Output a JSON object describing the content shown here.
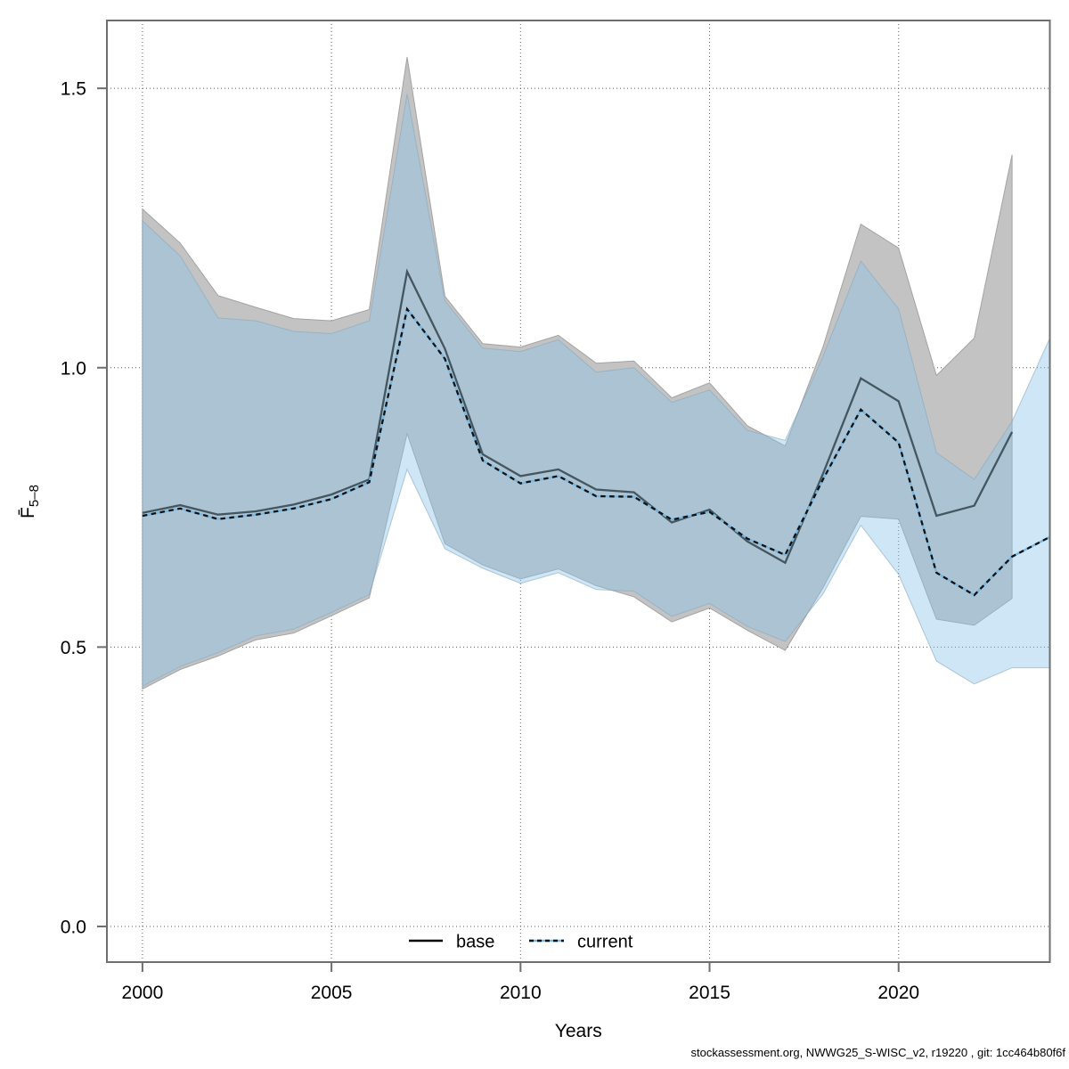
{
  "chart_data": {
    "type": "line",
    "title": "",
    "xlabel": "Years",
    "ylabel": {
      "main": "F̄",
      "sub": "5–8"
    },
    "footer": "stockassessment.org, NWWG25_S-WISC_v2, r19220 , git: 1cc464b80f6f",
    "xlim": [
      1999.06,
      2024.0
    ],
    "ylim": [
      -0.0638,
      1.6214
    ],
    "grid": "dotted",
    "legend_position": "bottom-center-inside",
    "x_ticks": [
      2000,
      2005,
      2010,
      2015,
      2020
    ],
    "x_tick_labels": [
      "2000",
      "2005",
      "2010",
      "2015",
      "2020"
    ],
    "y_ticks": [
      0.0,
      0.5,
      1.0,
      1.5
    ],
    "y_tick_labels": [
      "0.0",
      "0.5",
      "1.0",
      "1.5"
    ],
    "legend": [
      {
        "label": "base",
        "style": "solid"
      },
      {
        "label": "current",
        "style": "dotted"
      }
    ],
    "series": [
      {
        "name": "base",
        "line_style": "solid",
        "years": [
          2000,
          2001,
          2002,
          2003,
          2004,
          2005,
          2006,
          2007,
          2008,
          2009,
          2010,
          2011,
          2012,
          2013,
          2014,
          2015,
          2016,
          2017,
          2018,
          2019,
          2020,
          2021,
          2022,
          2023
        ],
        "median": [
          0.74,
          0.754,
          0.737,
          0.743,
          0.755,
          0.773,
          0.8,
          1.172,
          1.034,
          0.845,
          0.806,
          0.818,
          0.782,
          0.777,
          0.723,
          0.746,
          0.689,
          0.651,
          0.81,
          0.981,
          0.94,
          0.735,
          0.753,
          0.885
        ],
        "lower": [
          0.425,
          0.46,
          0.484,
          0.513,
          0.525,
          0.556,
          0.588,
          0.882,
          0.685,
          0.647,
          0.622,
          0.64,
          0.61,
          0.59,
          0.545,
          0.57,
          0.53,
          0.494,
          0.606,
          0.734,
          0.729,
          0.55,
          0.539,
          0.587
        ],
        "upper": [
          1.284,
          1.223,
          1.129,
          1.108,
          1.088,
          1.084,
          1.104,
          1.556,
          1.128,
          1.043,
          1.037,
          1.058,
          1.008,
          1.012,
          0.946,
          0.973,
          0.896,
          0.86,
          1.037,
          1.257,
          1.214,
          0.986,
          1.053,
          1.381
        ]
      },
      {
        "name": "current",
        "line_style": "dotted",
        "years": [
          2000,
          2001,
          2002,
          2003,
          2004,
          2005,
          2006,
          2007,
          2008,
          2009,
          2010,
          2011,
          2012,
          2013,
          2014,
          2015,
          2016,
          2017,
          2018,
          2019,
          2020,
          2021,
          2022,
          2023,
          2024
        ],
        "median": [
          0.735,
          0.748,
          0.729,
          0.737,
          0.748,
          0.765,
          0.795,
          1.105,
          1.016,
          0.834,
          0.793,
          0.806,
          0.77,
          0.769,
          0.728,
          0.742,
          0.694,
          0.665,
          0.8,
          0.925,
          0.866,
          0.633,
          0.593,
          0.662,
          0.697
        ],
        "lower": [
          0.43,
          0.465,
          0.49,
          0.52,
          0.532,
          0.562,
          0.594,
          0.818,
          0.676,
          0.641,
          0.614,
          0.633,
          0.603,
          0.6,
          0.555,
          0.578,
          0.537,
          0.51,
          0.595,
          0.718,
          0.63,
          0.475,
          0.434,
          0.463,
          0.463
        ],
        "upper": [
          1.263,
          1.2,
          1.089,
          1.084,
          1.065,
          1.061,
          1.084,
          1.49,
          1.12,
          1.035,
          1.029,
          1.05,
          0.992,
          1.0,
          0.938,
          0.96,
          0.888,
          0.87,
          1.02,
          1.191,
          1.105,
          0.848,
          0.8,
          0.904,
          1.053
        ]
      }
    ],
    "colors": {
      "band_base": "#c3c3c3",
      "band_base_edge": "#a3a3a3",
      "band_current": "#8ac4e6",
      "band_current_opacity": "0.42",
      "band_current_edge": "#85a8bf",
      "line_base_plot": "#44565f",
      "line_base_legend": "#000000",
      "line_current_bg": "#79b7de",
      "line_current_dash": "#0c141b",
      "grid_color": "#3f3f3f",
      "frame_color": "#6e6e6e",
      "text_color": "#000000",
      "footer_color": "#1a1a1a",
      "background": "#ffffff"
    }
  }
}
